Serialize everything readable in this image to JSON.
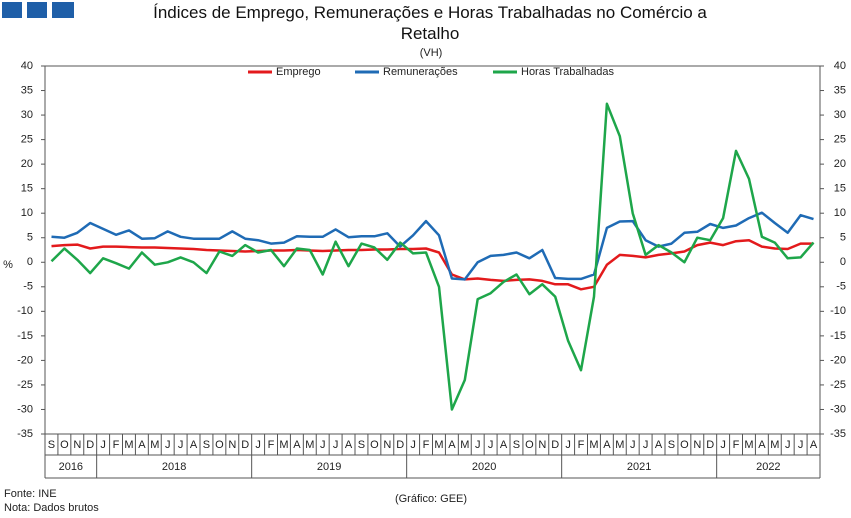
{
  "chart_data": {
    "type": "line",
    "title": "Índices de Emprego, Remunerações e Horas Trabalhadas no Comércio a Retalho",
    "subtitle": "(VH)",
    "y_label": "%",
    "categories": [
      "S",
      "O",
      "N",
      "D",
      "J",
      "F",
      "M",
      "A",
      "M",
      "J",
      "J",
      "A",
      "S",
      "O",
      "N",
      "D",
      "J",
      "F",
      "M",
      "A",
      "M",
      "J",
      "J",
      "A",
      "S",
      "O",
      "N",
      "D",
      "J",
      "F",
      "M",
      "A",
      "M",
      "J",
      "J",
      "A",
      "S",
      "O",
      "N",
      "D",
      "J",
      "F",
      "M",
      "A",
      "M",
      "J",
      "J",
      "A",
      "S",
      "O",
      "N",
      "D",
      "J",
      "F",
      "M",
      "A",
      "M",
      "J",
      "J",
      "A"
    ],
    "year_labels": [
      "2016",
      "2018",
      "2019",
      "2020",
      "2021",
      "2022"
    ],
    "series": [
      {
        "name": "Emprego",
        "color": "#e31a1c",
        "values": [
          3.3,
          3.5,
          3.6,
          2.8,
          3.2,
          3.2,
          3.1,
          3.0,
          3.0,
          2.9,
          2.8,
          2.7,
          2.5,
          2.4,
          2.3,
          2.2,
          2.3,
          2.4,
          2.4,
          2.5,
          2.4,
          2.3,
          2.4,
          2.5,
          2.5,
          2.6,
          2.6,
          2.7,
          2.7,
          2.8,
          2.0,
          -2.5,
          -3.5,
          -3.3,
          -3.6,
          -3.8,
          -3.6,
          -3.5,
          -3.8,
          -4.5,
          -4.5,
          -5.5,
          -5.0,
          -0.5,
          1.5,
          1.3,
          1.0,
          1.5,
          1.8,
          2.2,
          3.5,
          4.0,
          3.5,
          4.3,
          4.5,
          3.2,
          2.8,
          2.7,
          3.8,
          3.8
        ]
      },
      {
        "name": "Remunerações",
        "color": "#1f6bb5",
        "values": [
          5.2,
          5.0,
          6.0,
          8.0,
          6.8,
          5.6,
          6.5,
          4.8,
          4.9,
          6.3,
          5.2,
          4.8,
          4.8,
          4.8,
          6.3,
          4.8,
          4.5,
          3.8,
          4.0,
          5.3,
          5.2,
          5.2,
          6.7,
          5.1,
          5.3,
          5.3,
          5.9,
          3.2,
          5.5,
          8.4,
          5.5,
          -3.3,
          -3.5,
          0.0,
          1.3,
          1.5,
          2.0,
          0.8,
          2.5,
          -3.2,
          -3.4,
          -3.4,
          -2.5,
          7.0,
          8.3,
          8.4,
          4.5,
          3.2,
          3.8,
          6.0,
          6.2,
          7.8,
          7.0,
          7.5,
          9.0,
          10.1,
          8.0,
          6.0,
          9.6,
          8.8
        ]
      },
      {
        "name": "Horas Trabalhadas",
        "color": "#1ea64a",
        "values": [
          0.2,
          2.8,
          0.5,
          -2.2,
          0.8,
          -0.2,
          -1.3,
          2.0,
          -0.5,
          0.0,
          1.0,
          0.0,
          -2.2,
          2.2,
          1.3,
          3.5,
          2.0,
          2.5,
          -0.8,
          2.8,
          2.5,
          -2.5,
          4.2,
          -0.8,
          3.8,
          3.0,
          0.5,
          4.0,
          1.8,
          2.0,
          -5.0,
          -30.0,
          -24.0,
          -7.5,
          -6.3,
          -4.0,
          -2.5,
          -6.5,
          -4.5,
          -7.0,
          -16.0,
          -22.0,
          -7.0,
          32.3,
          25.7,
          10.0,
          1.5,
          3.5,
          2.0,
          0.0,
          5.0,
          4.5,
          9.0,
          22.7,
          17.0,
          5.2,
          4.0,
          0.8,
          1.0,
          4.0
        ]
      }
    ],
    "ylim": [
      -35,
      40
    ],
    "yticks": [
      -35,
      -30,
      -25,
      -20,
      -15,
      -10,
      -5,
      0,
      5,
      10,
      15,
      20,
      25,
      30,
      35,
      40
    ],
    "source": "Fonte: INE",
    "note": "Nota: Dados brutos",
    "credit": "(Gráfico: GEE)"
  }
}
